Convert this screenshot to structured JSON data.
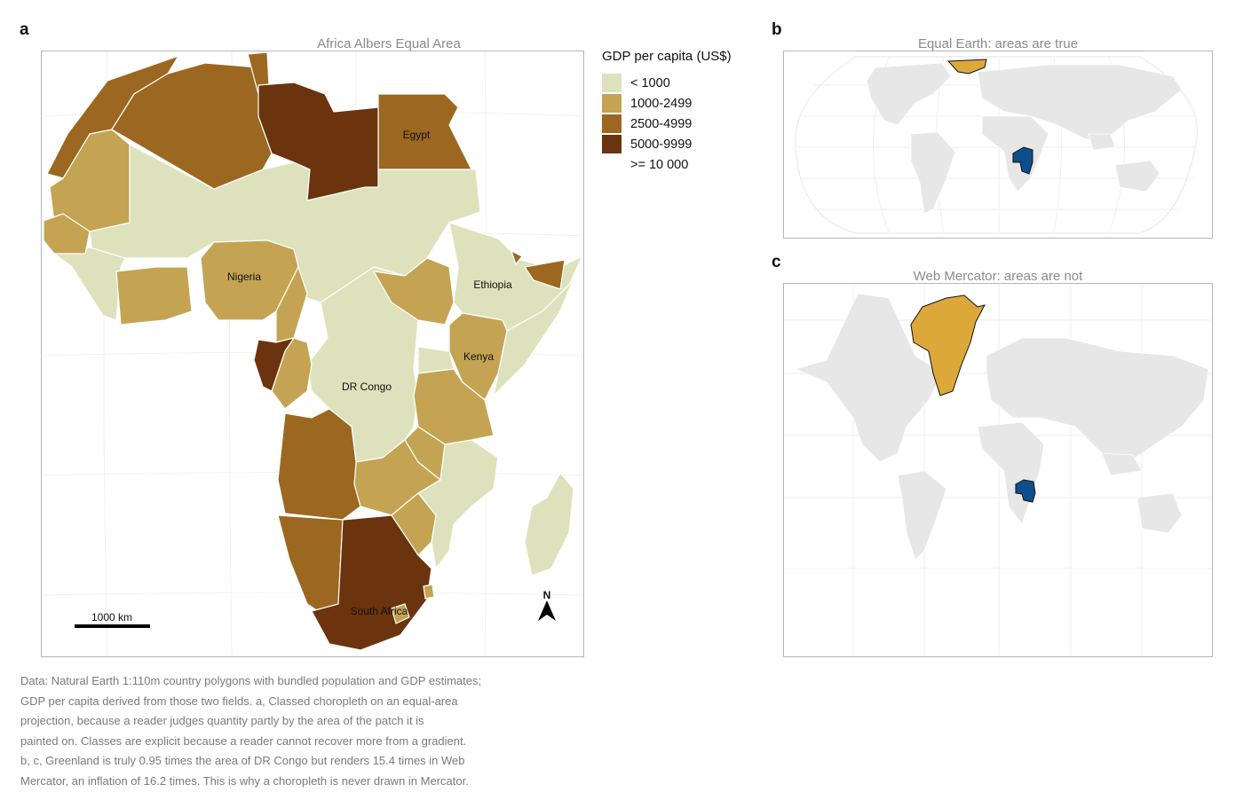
{
  "panels": {
    "a": {
      "letter": "a",
      "title": "Africa Albers Equal Area"
    },
    "b": {
      "letter": "b",
      "title": "Equal Earth: areas are true"
    },
    "c": {
      "letter": "c",
      "title": "Web Mercator: areas are not"
    }
  },
  "legend": {
    "title": "GDP per capita (US$)",
    "items": [
      {
        "label": "< 1000",
        "color": "#dde2bd"
      },
      {
        "label": "1000-2499",
        "color": "#c4a452"
      },
      {
        "label": "2500-4999",
        "color": "#9c6720"
      },
      {
        "label": "5000-9999",
        "color": "#6b330e"
      },
      {
        "label": ">= 10 000",
        "color": "#ffffff"
      }
    ]
  },
  "map_labels": {
    "egypt": "Egypt",
    "nigeria": "Nigeria",
    "ethiopia": "Ethiopia",
    "kenya": "Kenya",
    "dr_congo": "DR Congo",
    "south_africa": "South Africa"
  },
  "scale_bar": {
    "label": "1000 km"
  },
  "north_arrow": {
    "label": "N"
  },
  "highlight_colors": {
    "greenland": "#dda83a",
    "dr_congo": "#0d4f8b",
    "land": "#e7e7e7"
  },
  "caption": [
    "Data: Natural Earth 1:110m country polygons with bundled population and GDP estimates;",
    "GDP per capita derived from those two fields. a, Classed choropleth on an equal-area",
    "projection, because a reader judges quantity partly by the area of the patch it is",
    "painted on. Classes are explicit because a reader cannot recover more from a gradient.",
    "b, c, Greenland is truly 0.95 times the area of DR Congo but renders 15.4 times in Web",
    "Mercator, an inflation of 16.2 times. This is why a choropleth is never drawn in Mercator."
  ]
}
